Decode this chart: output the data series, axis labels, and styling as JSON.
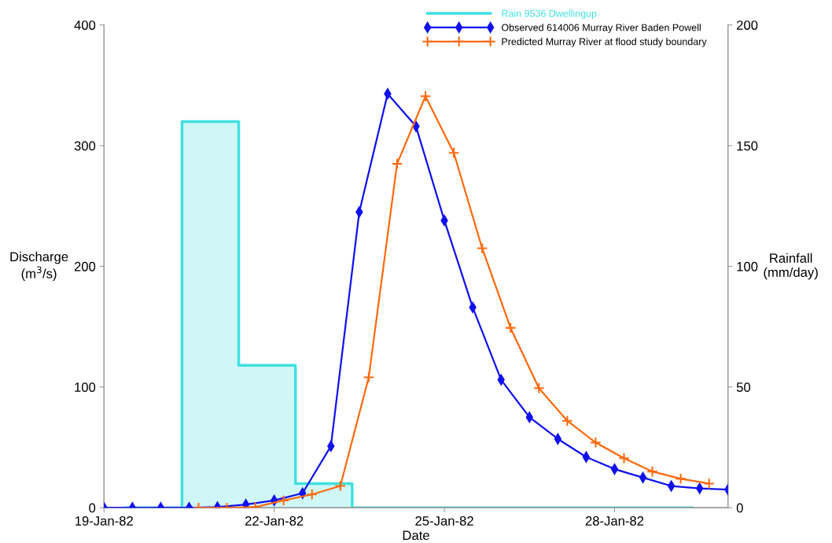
{
  "chart_data": {
    "type": "line",
    "xlabel": "Date",
    "ylabel": "Discharge\n(m$^{3}$/s)",
    "y2label": "Rainfall\n(mm/day)",
    "xlim": [
      "1982-01-19",
      "1982-01-30"
    ],
    "xticks": [
      {
        "value": "1982-01-19",
        "label": "19-Jan-82"
      },
      {
        "value": "1982-01-22",
        "label": "22-Jan-82"
      },
      {
        "value": "1982-01-25",
        "label": "25-Jan-82"
      },
      {
        "value": "1982-01-28",
        "label": "28-Jan-82"
      }
    ],
    "ylim": [
      0,
      400
    ],
    "yticks": [
      0,
      100,
      200,
      300,
      400
    ],
    "y2lim": [
      0,
      200
    ],
    "y2ticks": [
      0,
      50,
      100,
      150,
      200
    ],
    "grid": false,
    "legend": "top right",
    "series": [
      {
        "name": "Rain 9536 Dwellingup",
        "type": "area",
        "axis": "y2",
        "color": "#40e0e0",
        "marker": "none",
        "x": [
          "1982-01-19T09:00",
          "1982-01-20T09:00",
          "1982-01-21T09:00",
          "1982-01-22T09:00",
          "1982-01-23T09:00",
          "1982-01-29T09:00"
        ],
        "values": [
          0,
          160,
          59,
          10,
          0,
          0
        ]
      },
      {
        "name": "Observed 614006 Murray River Baden Powell",
        "color": "#1010f0",
        "marker": "diamond",
        "x": [
          "1982-01-19T00:00",
          "1982-01-19T12:00",
          "1982-01-20T00:00",
          "1982-01-20T12:00",
          "1982-01-21T00:00",
          "1982-01-21T12:00",
          "1982-01-22T00:00",
          "1982-01-22T12:00",
          "1982-01-23T00:00",
          "1982-01-23T12:00",
          "1982-01-24T00:00",
          "1982-01-24T12:00",
          "1982-01-25T00:00",
          "1982-01-25T12:00",
          "1982-01-26T00:00",
          "1982-01-26T12:00",
          "1982-01-27T00:00",
          "1982-01-27T12:00",
          "1982-01-28T00:00",
          "1982-01-28T12:00",
          "1982-01-29T00:00",
          "1982-01-29T12:00",
          "1982-01-30T00:00"
        ],
        "values": [
          0,
          0,
          0,
          0,
          0.5,
          2.6,
          6,
          12,
          51,
          245,
          343,
          316,
          238,
          166,
          106,
          75,
          57,
          42,
          32,
          25,
          18,
          16,
          15
        ]
      },
      {
        "name": "Predicted Murray River at flood study boundary",
        "color": "#ff6a10",
        "marker": "cross",
        "x": [
          "1982-01-20T16:00",
          "1982-01-21T04:00",
          "1982-01-21T16:00",
          "1982-01-22T04:00",
          "1982-01-22T16:00",
          "1982-01-23T04:00",
          "1982-01-23T16:00",
          "1982-01-24T04:00",
          "1982-01-24T16:00",
          "1982-01-25T04:00",
          "1982-01-25T16:00",
          "1982-01-26T04:00",
          "1982-01-26T16:00",
          "1982-01-27T04:00",
          "1982-01-27T16:00",
          "1982-01-28T04:00",
          "1982-01-28T16:00",
          "1982-01-29T04:00",
          "1982-01-29T16:00"
        ],
        "values": [
          0,
          0,
          0.5,
          6,
          11,
          18,
          108,
          285,
          341,
          294,
          215,
          149,
          99,
          72,
          54,
          41,
          30,
          24,
          20
        ]
      }
    ]
  }
}
